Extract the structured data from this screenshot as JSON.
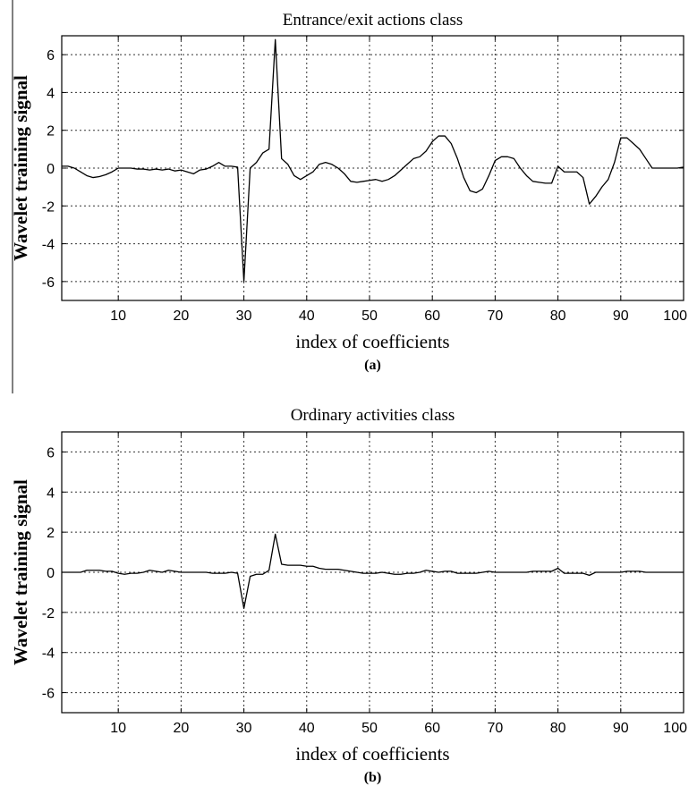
{
  "chart_data": [
    {
      "type": "line",
      "title": "Entrance/exit actions class",
      "xlabel": "index of coefficients",
      "ylabel": "Wavelet training signal",
      "caption": "(a)",
      "xlim": [
        1,
        100
      ],
      "ylim": [
        -7,
        7
      ],
      "xticks": [
        10,
        20,
        30,
        40,
        50,
        60,
        70,
        80,
        90,
        100
      ],
      "yticks": [
        6,
        4,
        2,
        0,
        -2,
        -4,
        -6
      ],
      "grid": true,
      "series": [
        {
          "x": [
            1,
            2,
            3,
            4,
            5,
            6,
            7,
            8,
            9,
            10,
            11,
            12,
            13,
            14,
            15,
            16,
            17,
            18,
            19,
            20,
            21,
            22,
            23,
            24,
            25,
            26,
            27,
            28,
            29,
            30,
            31,
            32,
            33,
            34,
            35,
            36,
            37,
            38,
            39,
            40,
            41,
            42,
            43,
            44,
            45,
            46,
            47,
            48,
            49,
            50,
            51,
            52,
            53,
            54,
            55,
            56,
            57,
            58,
            59,
            60,
            61,
            62,
            63,
            64,
            65,
            66,
            67,
            68,
            69,
            70,
            71,
            72,
            73,
            74,
            75,
            76,
            77,
            78,
            79,
            80,
            81,
            82,
            83,
            84,
            85,
            86,
            87,
            88,
            89,
            90,
            91,
            92,
            93,
            94,
            95,
            96,
            97,
            98,
            99,
            100
          ],
          "y": [
            0.1,
            0.1,
            0.0,
            -0.2,
            -0.4,
            -0.5,
            -0.45,
            -0.35,
            -0.2,
            0.0,
            0.0,
            0.0,
            -0.05,
            -0.05,
            -0.1,
            -0.05,
            -0.1,
            -0.05,
            -0.15,
            -0.1,
            -0.2,
            -0.3,
            -0.1,
            -0.05,
            0.1,
            0.3,
            0.1,
            0.1,
            0.05,
            -6.0,
            0.0,
            0.3,
            0.8,
            1.0,
            6.8,
            0.5,
            0.2,
            -0.4,
            -0.6,
            -0.4,
            -0.2,
            0.2,
            0.3,
            0.2,
            0.0,
            -0.3,
            -0.7,
            -0.75,
            -0.7,
            -0.65,
            -0.6,
            -0.7,
            -0.6,
            -0.4,
            -0.1,
            0.2,
            0.5,
            0.6,
            0.9,
            1.4,
            1.7,
            1.7,
            1.3,
            0.5,
            -0.5,
            -1.2,
            -1.3,
            -1.1,
            -0.4,
            0.4,
            0.6,
            0.6,
            0.5,
            0.0,
            -0.4,
            -0.7,
            -0.75,
            -0.8,
            -0.8,
            0.1,
            -0.2,
            -0.2,
            -0.2,
            -0.5,
            -1.9,
            -1.5,
            -1.0,
            -0.6,
            0.3,
            1.6,
            1.6,
            1.3,
            1.0,
            0.5,
            0.0,
            0.0,
            0.0,
            0.0,
            0.0,
            0.05
          ]
        }
      ]
    },
    {
      "type": "line",
      "title": "Ordinary activities class",
      "xlabel": "index of coefficients",
      "ylabel": "Wavelet training signal",
      "caption": "(b)",
      "xlim": [
        1,
        100
      ],
      "ylim": [
        -7,
        7
      ],
      "xticks": [
        10,
        20,
        30,
        40,
        50,
        60,
        70,
        80,
        90,
        100
      ],
      "yticks": [
        6,
        4,
        2,
        0,
        -2,
        -4,
        -6
      ],
      "grid": true,
      "series": [
        {
          "x": [
            1,
            2,
            3,
            4,
            5,
            6,
            7,
            8,
            9,
            10,
            11,
            12,
            13,
            14,
            15,
            16,
            17,
            18,
            19,
            20,
            21,
            22,
            23,
            24,
            25,
            26,
            27,
            28,
            29,
            30,
            31,
            32,
            33,
            34,
            35,
            36,
            37,
            38,
            39,
            40,
            41,
            42,
            43,
            44,
            45,
            46,
            47,
            48,
            49,
            50,
            51,
            52,
            53,
            54,
            55,
            56,
            57,
            58,
            59,
            60,
            61,
            62,
            63,
            64,
            65,
            66,
            67,
            68,
            69,
            70,
            71,
            72,
            73,
            74,
            75,
            76,
            77,
            78,
            79,
            80,
            81,
            82,
            83,
            84,
            85,
            86,
            87,
            88,
            89,
            90,
            91,
            92,
            93,
            94,
            95,
            96,
            97,
            98,
            99,
            100
          ],
          "y": [
            0.0,
            0.0,
            0.0,
            0.0,
            0.1,
            0.1,
            0.1,
            0.05,
            0.05,
            -0.05,
            -0.1,
            -0.05,
            -0.05,
            0.0,
            0.1,
            0.05,
            0.0,
            0.1,
            0.05,
            0.0,
            0.0,
            0.0,
            0.0,
            0.0,
            -0.05,
            -0.05,
            -0.05,
            0.0,
            -0.05,
            -1.8,
            -0.2,
            -0.1,
            -0.1,
            0.1,
            1.9,
            0.4,
            0.35,
            0.35,
            0.35,
            0.3,
            0.3,
            0.2,
            0.15,
            0.15,
            0.15,
            0.1,
            0.05,
            0.0,
            -0.05,
            -0.05,
            -0.05,
            0.0,
            -0.05,
            -0.1,
            -0.1,
            -0.05,
            -0.05,
            0.0,
            0.1,
            0.05,
            0.0,
            0.05,
            0.05,
            -0.05,
            -0.05,
            -0.05,
            -0.05,
            0.0,
            0.05,
            0.0,
            0.0,
            0.0,
            0.0,
            0.0,
            0.0,
            0.05,
            0.05,
            0.05,
            0.05,
            0.2,
            -0.05,
            -0.05,
            -0.05,
            -0.05,
            -0.15,
            0.0,
            0.0,
            0.0,
            0.0,
            0.0,
            0.05,
            0.05,
            0.05,
            0.0,
            0.0,
            0.0,
            0.0,
            0.0,
            0.0,
            0.0
          ]
        }
      ]
    }
  ]
}
